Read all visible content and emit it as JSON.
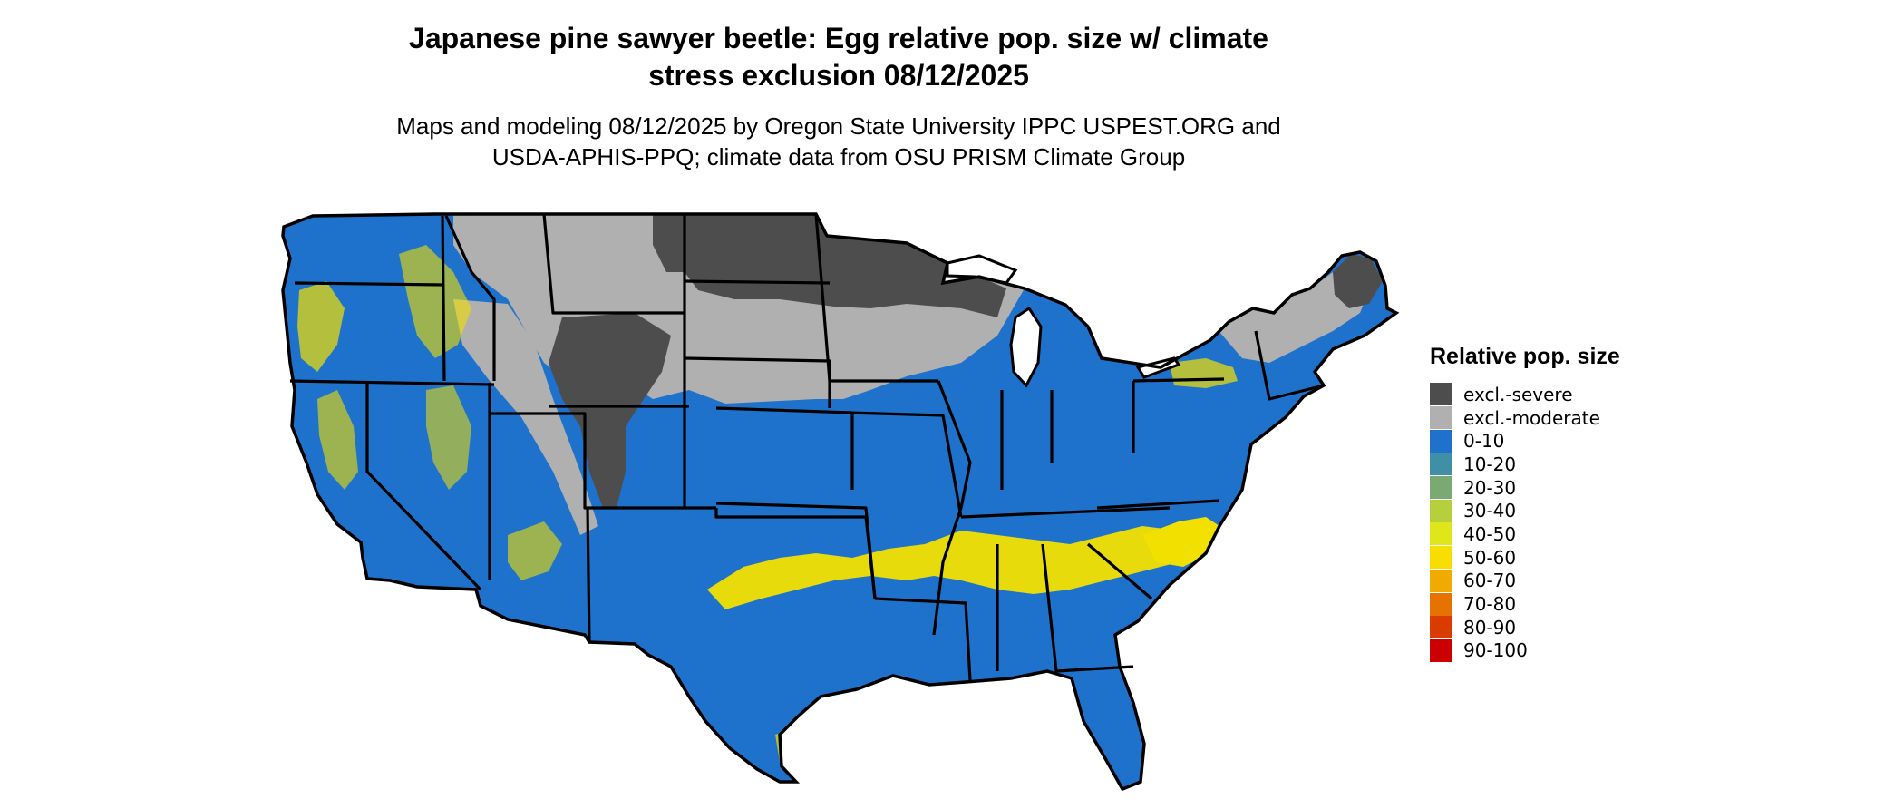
{
  "map": {
    "title_line1": "Japanese pine sawyer beetle: Egg relative pop. size w/ climate",
    "title_line2": "stress exclusion 08/12/2025",
    "subtitle_line1": "Maps and modeling 08/12/2025 by Oregon State University IPPC USPEST.ORG and",
    "subtitle_line2": "USDA-APHIS-PPQ; climate data from OSU PRISM Climate Group",
    "region": "Contiguous United States",
    "colors": {
      "excl_severe": "#4d4d4d",
      "excl_moderate": "#b0b0b0",
      "range_0_10": "#1f72cc",
      "range_40_60": "#f2e000",
      "borders": "#000000"
    }
  },
  "legend": {
    "title": "Relative pop. size",
    "items": [
      {
        "label": "excl.-severe",
        "color": "#4d4d4d"
      },
      {
        "label": "excl.-moderate",
        "color": "#b0b0b0"
      },
      {
        "label": "0-10",
        "color": "#1f72cc"
      },
      {
        "label": "10-20",
        "color": "#3f8fa6"
      },
      {
        "label": "20-30",
        "color": "#79aa72"
      },
      {
        "label": "30-40",
        "color": "#b6cf3c"
      },
      {
        "label": "40-50",
        "color": "#dfe61a"
      },
      {
        "label": "50-60",
        "color": "#f7dd00"
      },
      {
        "label": "60-70",
        "color": "#f0aa00"
      },
      {
        "label": "70-80",
        "color": "#e67300"
      },
      {
        "label": "80-90",
        "color": "#da3c00"
      },
      {
        "label": "90-100",
        "color": "#cc0000"
      }
    ]
  }
}
